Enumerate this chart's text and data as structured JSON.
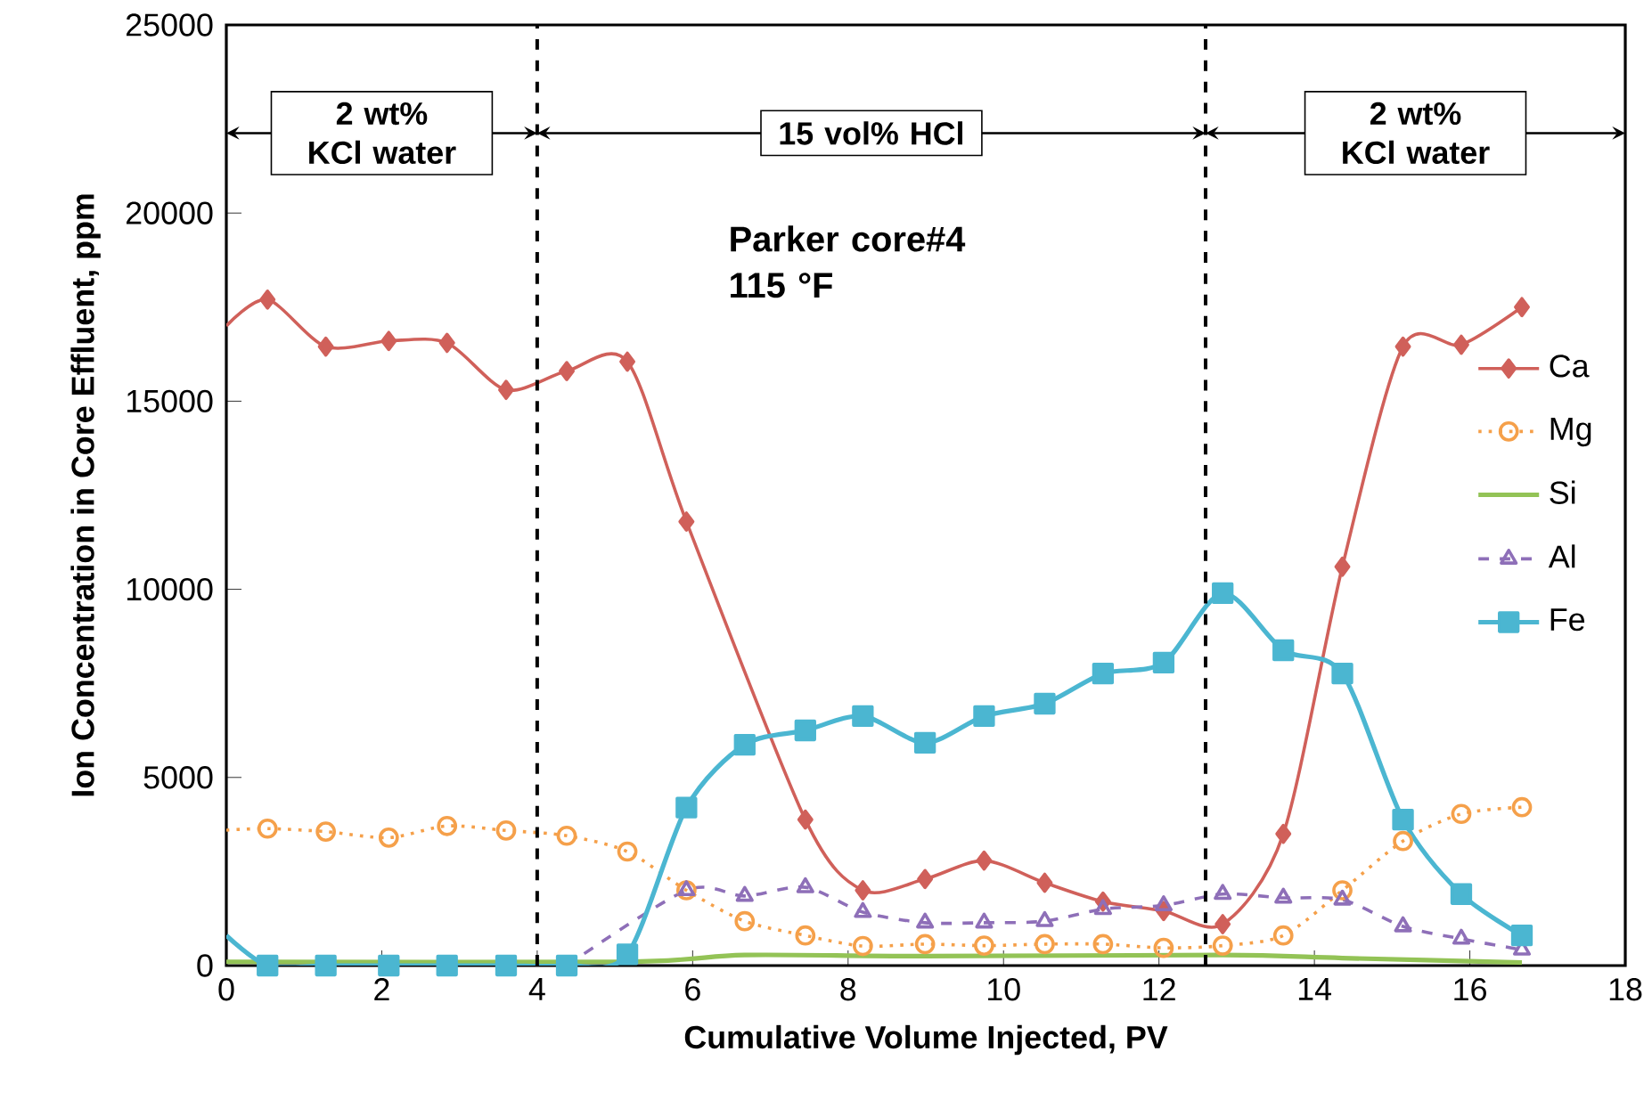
{
  "chart_data": {
    "type": "line",
    "xlabel": "Cumulative Volume Injected, PV",
    "ylabel": "Ion Concentration in Core Effluent, ppm",
    "xlim": [
      0,
      18
    ],
    "xticks": [
      0,
      2,
      4,
      6,
      8,
      10,
      12,
      14,
      16,
      18
    ],
    "ylim": [
      0,
      25000
    ],
    "yticks": [
      0,
      5000,
      10000,
      15000,
      20000,
      25000
    ],
    "grid": false,
    "legend": "right",
    "ref_lines": [
      {
        "axis": "x",
        "value": 4.0,
        "color": "#000000",
        "line_style": "dashed"
      },
      {
        "axis": "x",
        "value": 12.6,
        "color": "#000000",
        "line_style": "dashed"
      }
    ],
    "annotations": [
      "2 wt% KCl water",
      "15 vol% HCl",
      "2 wt% KCl water",
      "Parker core#4 115 °F"
    ],
    "series": [
      {
        "name": "Ca",
        "color": "#d0605a",
        "marker": "diamond",
        "line_style": "solid",
        "x": [
          0,
          0.53,
          1.28,
          2.09,
          2.84,
          3.6,
          4.38,
          5.16,
          5.92,
          6.67,
          7.45,
          8.19,
          8.99,
          9.75,
          10.53,
          11.28,
          12.06,
          12.82,
          13.6,
          14.36,
          15.14,
          15.89,
          16.67
        ],
        "values": [
          17000,
          17700,
          16450,
          16600,
          16550,
          15300,
          15800,
          16050,
          11800,
          null,
          3880,
          2000,
          2300,
          2790,
          2200,
          1700,
          1450,
          1100,
          3500,
          10600,
          16450,
          16500,
          17500
        ]
      },
      {
        "name": "Mg",
        "color": "#f5a04a",
        "marker": "circle",
        "line_style": "dotted",
        "x": [
          0,
          0.53,
          1.28,
          2.09,
          2.84,
          3.6,
          4.38,
          5.16,
          5.92,
          6.67,
          7.45,
          8.19,
          8.99,
          9.75,
          10.53,
          11.28,
          12.06,
          12.82,
          13.6,
          14.36,
          15.14,
          15.89,
          16.67
        ],
        "values": [
          3600,
          3640,
          3560,
          3400,
          3710,
          3590,
          3450,
          3030,
          2000,
          1180,
          800,
          520,
          570,
          530,
          570,
          570,
          470,
          530,
          800,
          2000,
          3310,
          4030,
          4210
        ]
      },
      {
        "name": "Si",
        "color": "#93c356",
        "marker": "none",
        "line_style": "solid",
        "x": [
          0,
          5.16,
          6.67,
          8.99,
          12.82,
          14.36,
          16.67
        ],
        "values": [
          100,
          100,
          280,
          250,
          280,
          200,
          80
        ]
      },
      {
        "name": "Al",
        "color": "#8e6fb8",
        "marker": "triangle",
        "line_style": "dashed",
        "x": [
          4.38,
          5.16,
          5.92,
          6.67,
          7.45,
          8.19,
          8.99,
          9.75,
          10.53,
          11.28,
          12.06,
          12.82,
          13.6,
          14.36,
          15.14,
          15.89,
          16.67
        ],
        "values": [
          0,
          null,
          2000,
          1850,
          2080,
          1420,
          1140,
          1140,
          1180,
          1500,
          1600,
          1900,
          1800,
          1750,
          1040,
          710,
          420
        ]
      },
      {
        "name": "Fe",
        "color": "#4bb6d1",
        "marker": "square",
        "line_style": "solid",
        "x": [
          0,
          0.53,
          1.28,
          2.09,
          2.84,
          3.6,
          4.38,
          5.16,
          5.92,
          6.67,
          7.45,
          8.19,
          8.99,
          9.75,
          10.53,
          11.28,
          12.06,
          12.82,
          13.6,
          14.36,
          15.14,
          15.89,
          16.67
        ],
        "values": [
          800,
          0,
          0,
          0,
          0,
          0,
          0,
          300,
          4200,
          5870,
          6250,
          6630,
          5920,
          6630,
          6960,
          7760,
          8050,
          9900,
          8380,
          7760,
          3880,
          1900,
          800
        ]
      }
    ]
  }
}
